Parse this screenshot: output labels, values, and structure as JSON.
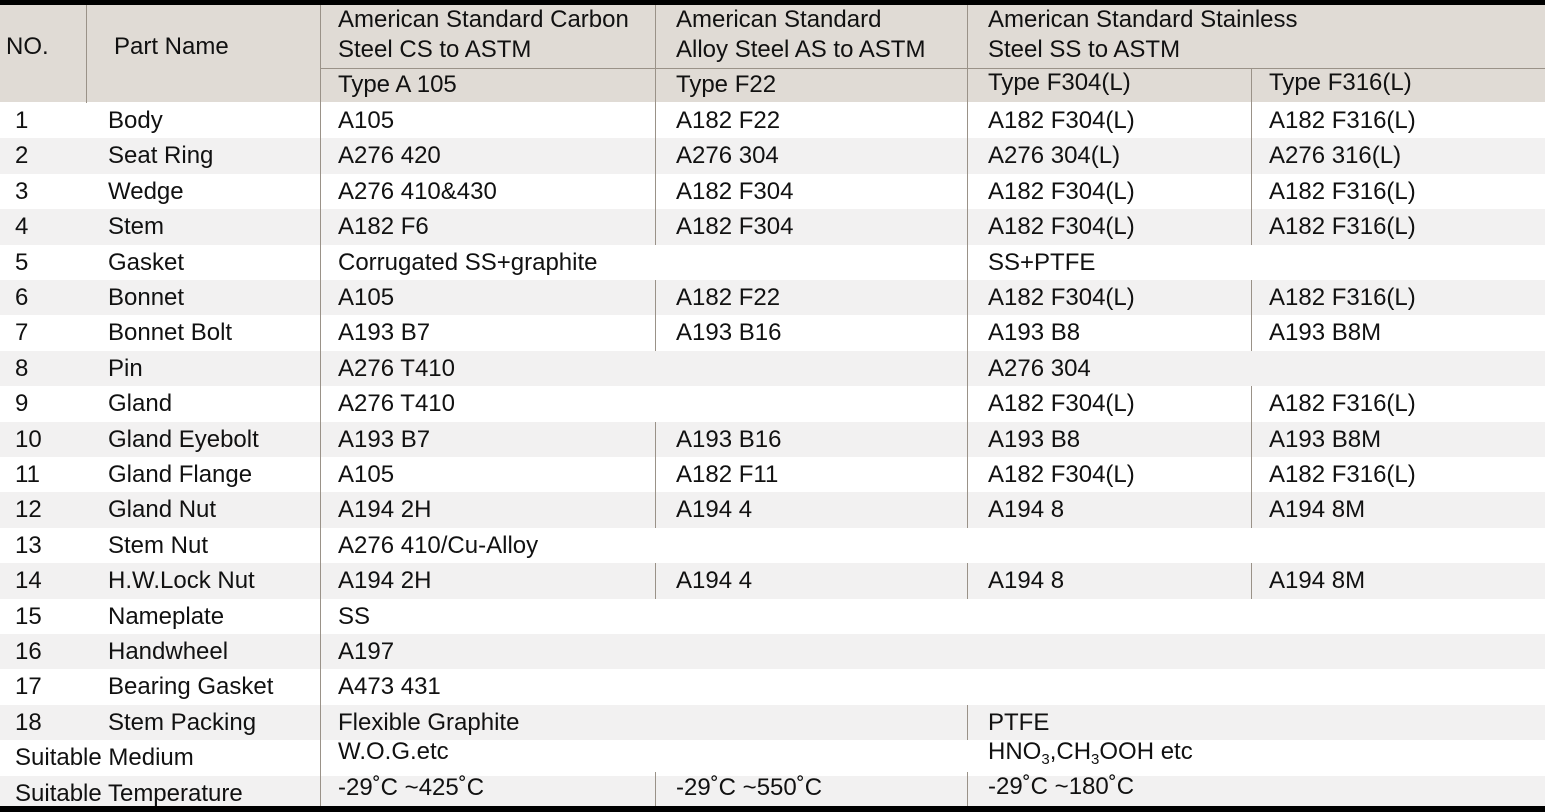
{
  "colors": {
    "header_bg": "#e0dbd5",
    "stripe_bg": "#f2f1f1",
    "rule": "#000000",
    "divider": "#9a9288"
  },
  "header": {
    "no": "NO.",
    "part_name": "Part Name",
    "groups": [
      {
        "line1": "American Standard Carbon",
        "line2": "Steel CS to ASTM",
        "types": [
          "Type A 105"
        ]
      },
      {
        "line1": "American Standard",
        "line2": "Alloy Steel AS to ASTM",
        "types": [
          "Type F22"
        ]
      },
      {
        "line1": "American Standard Stainless",
        "line2": "Steel SS to ASTM",
        "types": [
          "Type F304(L)",
          "Type F316(L)"
        ]
      }
    ]
  },
  "rows": [
    {
      "no": "1",
      "part": "Body",
      "cs": "A105",
      "as": "A182 F22",
      "ss304": "A182 F304(L)",
      "ss316": "A182 F316(L)"
    },
    {
      "no": "2",
      "part": "Seat Ring",
      "cs": "A276 420",
      "as": "A276 304",
      "ss304": "A276 304(L)",
      "ss316": "A276 316(L)"
    },
    {
      "no": "3",
      "part": "Wedge",
      "cs": "A276 410&430",
      "as": "A182 F304",
      "ss304": "A182 F304(L)",
      "ss316": "A182 F316(L)"
    },
    {
      "no": "4",
      "part": "Stem",
      "cs": "A182 F6",
      "as": "A182 F304",
      "ss304": "A182 F304(L)",
      "ss316": "A182 F316(L)"
    },
    {
      "no": "5",
      "part": "Gasket",
      "cs": "Corrugated SS+graphite",
      "as": "",
      "ss304": "SS+PTFE",
      "ss316": ""
    },
    {
      "no": "6",
      "part": "Bonnet",
      "cs": "A105",
      "as": "A182 F22",
      "ss304": "A182 F304(L)",
      "ss316": "A182 F316(L)"
    },
    {
      "no": "7",
      "part": "Bonnet Bolt",
      "cs": "A193 B7",
      "as": "A193 B16",
      "ss304": "A193 B8",
      "ss316": "A193 B8M"
    },
    {
      "no": "8",
      "part": "Pin",
      "cs": "A276 T410",
      "as": "",
      "ss304": "A276 304",
      "ss316": ""
    },
    {
      "no": "9",
      "part": "Gland",
      "cs": "A276 T410",
      "as": "",
      "ss304": "A182 F304(L)",
      "ss316": "A182 F316(L)"
    },
    {
      "no": "10",
      "part": "Gland Eyebolt",
      "cs": "A193 B7",
      "as": "A193 B16",
      "ss304": "A193 B8",
      "ss316": "A193 B8M"
    },
    {
      "no": "11",
      "part": "Gland Flange",
      "cs": "A105",
      "as": "A182 F11",
      "ss304": "A182 F304(L)",
      "ss316": "A182 F316(L)"
    },
    {
      "no": "12",
      "part": "Gland Nut",
      "cs": "A194 2H",
      "as": "A194 4",
      "ss304": "A194 8",
      "ss316": "A194 8M"
    },
    {
      "no": "13",
      "part": "Stem Nut",
      "cs": "A276 410/Cu-Alloy",
      "as": "",
      "ss304": "",
      "ss316": ""
    },
    {
      "no": "14",
      "part": "H.W.Lock Nut",
      "cs": "A194 2H",
      "as": "A194 4",
      "ss304": "A194 8",
      "ss316": "A194 8M"
    },
    {
      "no": "15",
      "part": "Nameplate",
      "cs": "SS",
      "as": "",
      "ss304": "",
      "ss316": ""
    },
    {
      "no": "16",
      "part": "Handwheel",
      "cs": "A197",
      "as": "",
      "ss304": "",
      "ss316": ""
    },
    {
      "no": "17",
      "part": "Bearing Gasket",
      "cs": "A473 431",
      "as": "",
      "ss304": "",
      "ss316": ""
    },
    {
      "no": "18",
      "part": "Stem Packing",
      "cs": "Flexible Graphite",
      "as": "",
      "ss304": "PTFE",
      "ss316": ""
    }
  ],
  "footer": {
    "medium": {
      "label": "Suitable Medium",
      "cs": "W.O.G.etc",
      "ss": {
        "p1": "HNO",
        "s1": "3",
        "p2": ",CH",
        "s2": "3",
        "p3": "OOH etc"
      }
    },
    "temperature": {
      "label": "Suitable Temperature",
      "cs": "-29˚C ~425˚C",
      "as": "-29˚C ~550˚C",
      "ss": "-29˚C ~180˚C"
    }
  }
}
